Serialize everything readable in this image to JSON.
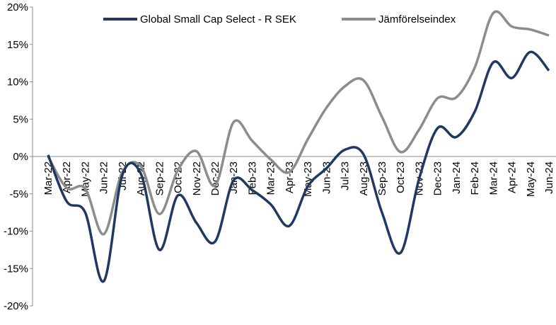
{
  "chart_data": {
    "type": "line",
    "title": "",
    "xlabel": "",
    "ylabel": "",
    "ylim": [
      -20,
      20
    ],
    "yticks": [
      -20,
      -15,
      -10,
      -5,
      0,
      5,
      10,
      15,
      20
    ],
    "ytick_labels": [
      "-20%",
      "-15%",
      "-10%",
      "-5%",
      "0%",
      "5%",
      "10%",
      "15%",
      "20%"
    ],
    "grid": false,
    "legend_position": "top",
    "categories": [
      "Mar-22",
      "Apr-22",
      "May-22",
      "Jun-22",
      "Jul-22",
      "Aug-22",
      "Sep-22",
      "Oct-22",
      "Nov-22",
      "Dec-22",
      "Jan-23",
      "Feb-23",
      "Mar-23",
      "Apr-23",
      "May-23",
      "Jun-23",
      "Jul-23",
      "Aug-23",
      "Sep-23",
      "Oct-23",
      "Nov-23",
      "Dec-23",
      "Jan-24",
      "Feb-24",
      "Mar-24",
      "Apr-24",
      "May-24",
      "Jun-24"
    ],
    "series": [
      {
        "name": "Global Small Cap Select - R SEK",
        "color": "#1f3864",
        "values": [
          0.2,
          -6.0,
          -7.5,
          -16.7,
          -2.5,
          -2.3,
          -12.5,
          -5.2,
          -8.9,
          -11.4,
          -3.2,
          -4.5,
          -6.4,
          -9.3,
          -4.0,
          -1.6,
          0.9,
          0.3,
          -7.5,
          -12.9,
          -3.0,
          3.8,
          2.6,
          6.0,
          12.6,
          10.5,
          14.0,
          11.5
        ]
      },
      {
        "name": "Jämförelseindex",
        "color": "#8c8c8c",
        "values": [
          0.0,
          -4.2,
          -4.3,
          -10.4,
          -2.1,
          -1.3,
          -7.7,
          -1.8,
          0.7,
          -3.9,
          4.6,
          2.1,
          -0.4,
          -2.1,
          2.3,
          6.5,
          9.4,
          10.2,
          5.3,
          0.6,
          3.6,
          7.8,
          7.9,
          11.9,
          19.2,
          17.4,
          17.0,
          16.2
        ]
      }
    ]
  }
}
